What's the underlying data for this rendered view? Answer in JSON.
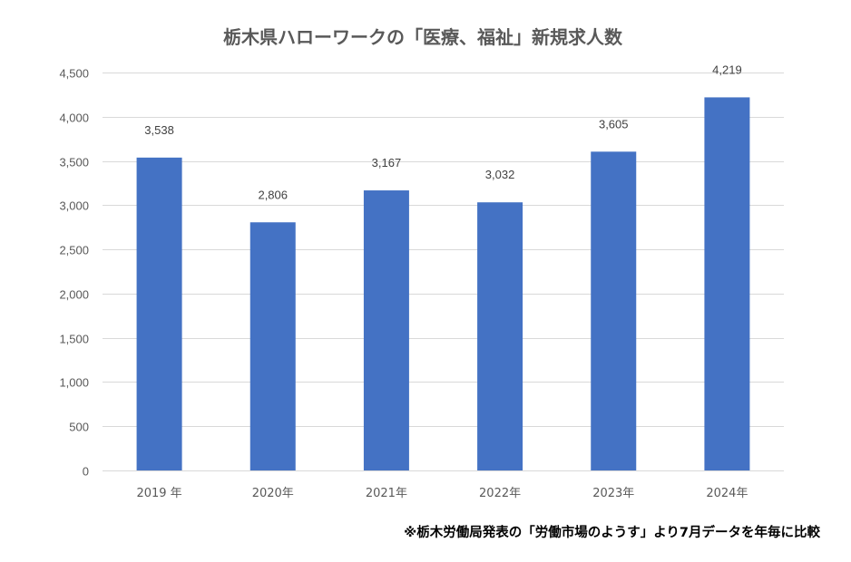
{
  "chart_data": {
    "type": "bar",
    "title": "栃木県ハローワークの「医療、福祉」新規求人数",
    "categories": [
      "2019 年",
      "2020年",
      "2021年",
      "2022年",
      "2023年",
      "2024年"
    ],
    "values": [
      3538,
      2806,
      3167,
      3032,
      3605,
      4219
    ],
    "value_labels": [
      "3,538",
      "2,806",
      "3,167",
      "3,032",
      "3,605",
      "4,219"
    ],
    "yticks": [
      0,
      500,
      1000,
      1500,
      2000,
      2500,
      3000,
      3500,
      4000,
      4500
    ],
    "ytick_labels": [
      "0",
      "500",
      "1,000",
      "1,500",
      "2,000",
      "2,500",
      "3,000",
      "3,500",
      "4,000",
      "4,500"
    ],
    "ylim": [
      0,
      4500
    ],
    "xlabel": "",
    "ylabel": "",
    "grid": true,
    "legend": "none",
    "bar_color": "#4472c4"
  },
  "footnote": "※栃木労働局発表の「労働市場のようす」より7月データを年毎に比較"
}
